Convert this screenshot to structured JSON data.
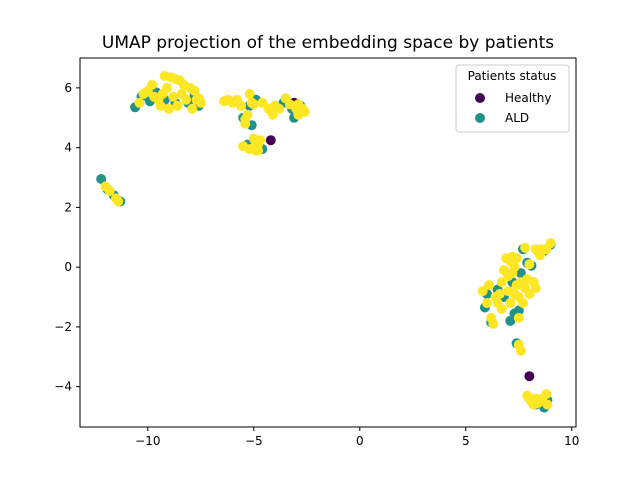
{
  "chart_data": {
    "type": "scatter",
    "title": "UMAP projection of the embedding space by patients",
    "xlabel": "",
    "ylabel": "",
    "xlim": [
      -13.2,
      10.2
    ],
    "ylim": [
      -5.35,
      7.0
    ],
    "xticks": [
      -10,
      -5,
      0,
      5,
      10
    ],
    "yticks": [
      -4,
      -2,
      0,
      2,
      4,
      6
    ],
    "grid": false,
    "legend": {
      "title": "Patients status",
      "placement": "top-right",
      "entries": [
        {
          "name": "Healthy",
          "color": "#440154"
        },
        {
          "name": "ALD",
          "color": "#21918c"
        }
      ]
    },
    "series": [
      {
        "name": "ALD",
        "color": "#21918c",
        "points": [
          [
            -12.2,
            2.95
          ],
          [
            -11.9,
            2.6
          ],
          [
            -11.6,
            2.4
          ],
          [
            -11.3,
            2.2
          ],
          [
            -10.6,
            5.35
          ],
          [
            -10.3,
            5.7
          ],
          [
            -9.9,
            5.55
          ],
          [
            -9.6,
            5.85
          ],
          [
            -9.2,
            5.6
          ],
          [
            -8.7,
            5.5
          ],
          [
            -8.1,
            5.5
          ],
          [
            -7.8,
            5.75
          ],
          [
            -7.6,
            5.4
          ],
          [
            -5.5,
            5.0
          ],
          [
            -5.2,
            5.4
          ],
          [
            -5.1,
            4.75
          ],
          [
            -4.9,
            5.6
          ],
          [
            -4.6,
            3.95
          ],
          [
            -5.3,
            4.1
          ],
          [
            -3.6,
            5.5
          ],
          [
            -3.2,
            5.3
          ],
          [
            -3.1,
            5.0
          ],
          [
            -2.8,
            5.4
          ],
          [
            5.9,
            -1.35
          ],
          [
            6.0,
            -0.9
          ],
          [
            6.2,
            -1.85
          ],
          [
            6.5,
            -0.75
          ],
          [
            6.8,
            -1.0
          ],
          [
            7.1,
            -1.8
          ],
          [
            7.3,
            -1.55
          ],
          [
            7.5,
            -1.45
          ],
          [
            7.2,
            -0.5
          ],
          [
            7.6,
            -0.2
          ],
          [
            7.7,
            0.6
          ],
          [
            7.9,
            0.15
          ],
          [
            8.1,
            0.05
          ],
          [
            8.4,
            0.55
          ],
          [
            8.7,
            0.55
          ],
          [
            9.0,
            0.75
          ],
          [
            7.4,
            -2.55
          ],
          [
            8.3,
            -4.6
          ],
          [
            8.6,
            -4.55
          ],
          [
            8.7,
            -4.7
          ],
          [
            8.85,
            -4.45
          ],
          [
            8.1,
            -4.45
          ]
        ]
      },
      {
        "name": "Healthy",
        "color": "#440154",
        "points": [
          [
            -4.2,
            4.25
          ],
          [
            -3.1,
            5.5
          ],
          [
            7.0,
            -0.25
          ],
          [
            8.0,
            -3.65
          ]
        ]
      },
      {
        "name": "",
        "color": "#fde725",
        "points": [
          [
            -12.0,
            2.7
          ],
          [
            -11.8,
            2.55
          ],
          [
            -11.5,
            2.3
          ],
          [
            -11.4,
            2.2
          ],
          [
            -10.4,
            5.5
          ],
          [
            -10.2,
            5.8
          ],
          [
            -10.0,
            5.9
          ],
          [
            -9.8,
            6.1
          ],
          [
            -9.7,
            5.7
          ],
          [
            -9.5,
            5.6
          ],
          [
            -9.4,
            5.4
          ],
          [
            -9.3,
            5.8
          ],
          [
            -9.2,
            6.4
          ],
          [
            -9.1,
            6.0
          ],
          [
            -9.0,
            5.3
          ],
          [
            -8.9,
            6.35
          ],
          [
            -8.8,
            5.7
          ],
          [
            -8.7,
            6.3
          ],
          [
            -8.6,
            5.4
          ],
          [
            -8.5,
            6.25
          ],
          [
            -8.4,
            5.8
          ],
          [
            -8.3,
            6.1
          ],
          [
            -8.2,
            5.6
          ],
          [
            -8.0,
            6.0
          ],
          [
            -7.9,
            5.3
          ],
          [
            -7.8,
            5.9
          ],
          [
            -7.7,
            5.6
          ],
          [
            -7.6,
            5.65
          ],
          [
            -7.5,
            5.5
          ],
          [
            -6.4,
            5.55
          ],
          [
            -6.2,
            5.6
          ],
          [
            -6.0,
            5.5
          ],
          [
            -5.8,
            5.6
          ],
          [
            -5.6,
            5.4
          ],
          [
            -5.5,
            4.05
          ],
          [
            -5.4,
            4.8
          ],
          [
            -5.3,
            5.1
          ],
          [
            -5.2,
            5.8
          ],
          [
            -5.1,
            5.5
          ],
          [
            -5.0,
            4.3
          ],
          [
            -4.9,
            3.9
          ],
          [
            -4.8,
            4.1
          ],
          [
            -4.7,
            4.25
          ],
          [
            -4.6,
            5.5
          ],
          [
            -5.2,
            3.95
          ],
          [
            -5.0,
            4.0
          ],
          [
            -4.8,
            3.9
          ],
          [
            -5.4,
            4.95
          ],
          [
            -5.0,
            5.45
          ],
          [
            -4.3,
            5.3
          ],
          [
            -4.1,
            5.1
          ],
          [
            -4.0,
            5.4
          ],
          [
            -3.8,
            5.3
          ],
          [
            -3.5,
            5.65
          ],
          [
            -3.3,
            5.45
          ],
          [
            -3.0,
            5.3
          ],
          [
            -2.9,
            5.1
          ],
          [
            -2.8,
            5.25
          ],
          [
            -2.7,
            5.3
          ],
          [
            -2.6,
            5.2
          ],
          [
            -2.9,
            5.45
          ],
          [
            5.8,
            -0.8
          ],
          [
            6.0,
            -1.2
          ],
          [
            6.1,
            -0.6
          ],
          [
            6.2,
            -1.7
          ],
          [
            6.3,
            -1.9
          ],
          [
            6.4,
            -1.0
          ],
          [
            6.5,
            -1.2
          ],
          [
            6.6,
            -0.9
          ],
          [
            6.7,
            -0.5
          ],
          [
            6.7,
            -1.4
          ],
          [
            6.8,
            -0.1
          ],
          [
            6.9,
            0.3
          ],
          [
            7.0,
            -0.3
          ],
          [
            7.0,
            -0.8
          ],
          [
            7.1,
            0.2
          ],
          [
            7.1,
            -1.2
          ],
          [
            7.2,
            -0.2
          ],
          [
            7.2,
            0.35
          ],
          [
            7.3,
            -0.9
          ],
          [
            7.3,
            0.0
          ],
          [
            7.4,
            0.3
          ],
          [
            7.4,
            -0.6
          ],
          [
            7.5,
            -1.7
          ],
          [
            7.5,
            -1.0
          ],
          [
            7.6,
            -0.5
          ],
          [
            7.7,
            -1.2
          ],
          [
            7.8,
            -0.7
          ],
          [
            7.8,
            0.65
          ],
          [
            7.9,
            -0.4
          ],
          [
            8.0,
            -0.9
          ],
          [
            8.0,
            0.1
          ],
          [
            8.2,
            -0.5
          ],
          [
            8.3,
            -0.7
          ],
          [
            8.3,
            0.6
          ],
          [
            8.5,
            0.4
          ],
          [
            8.6,
            0.6
          ],
          [
            8.8,
            0.6
          ],
          [
            9.0,
            0.8
          ],
          [
            7.5,
            -2.6
          ],
          [
            7.6,
            -2.8
          ],
          [
            7.9,
            -4.3
          ],
          [
            8.0,
            -4.4
          ],
          [
            8.1,
            -4.5
          ],
          [
            8.2,
            -4.6
          ],
          [
            8.3,
            -4.4
          ],
          [
            8.4,
            -4.55
          ],
          [
            8.5,
            -4.5
          ],
          [
            8.6,
            -4.4
          ],
          [
            8.8,
            -4.25
          ],
          [
            8.85,
            -4.6
          ]
        ]
      }
    ]
  }
}
